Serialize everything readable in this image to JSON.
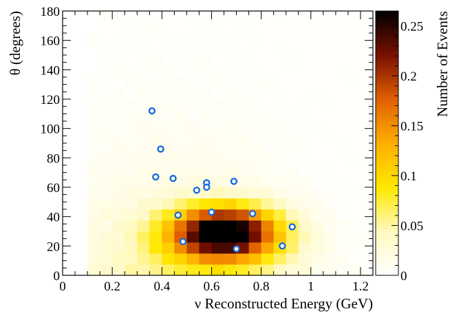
{
  "chart_data": {
    "type": "heatmap",
    "title": "",
    "xlabel": "ν Reconstructed Energy (GeV)",
    "ylabel": "θ (degrees)",
    "colorbar_label": "Number of Events",
    "xlim": [
      0,
      1.25
    ],
    "ylim": [
      0,
      180
    ],
    "zlim": [
      0,
      0.265
    ],
    "x_ticks": [
      0,
      0.2,
      0.4,
      0.6,
      0.8,
      1,
      1.2
    ],
    "x_tick_labels": [
      "0",
      "0.2",
      "0.4",
      "0.6",
      "0.8",
      "1",
      "1.2"
    ],
    "y_ticks": [
      0,
      20,
      40,
      60,
      80,
      100,
      120,
      140,
      160,
      180
    ],
    "y_tick_labels": [
      "0",
      "20",
      "40",
      "60",
      "80",
      "100",
      "120",
      "140",
      "160",
      "180"
    ],
    "colorbar_ticks": [
      0,
      0.05,
      0.1,
      0.15,
      0.2,
      0.25
    ],
    "colorbar_tick_labels": [
      "0",
      "0.05",
      "0.1",
      "0.15",
      "0.2",
      "0.25"
    ],
    "bins": {
      "x_edges": [
        0.1,
        1.25
      ],
      "x_width": 0.05,
      "y_edges": [
        0,
        180
      ],
      "y_width": 7.5
    },
    "heat_peak": {
      "x": 0.65,
      "y": 27,
      "sx": 0.16,
      "sy": 13,
      "amplitude": 0.25
    },
    "heat_secondary": {
      "x": 0.66,
      "y": 36,
      "sx": 0.12,
      "sy": 9,
      "amplitude": 0.05
    },
    "heat_background": {
      "amplitude": 0.05,
      "x_center": 0.45,
      "x_sigma": 0.35,
      "y_decay": 60
    },
    "points": [
      {
        "x": 0.36,
        "y": 112
      },
      {
        "x": 0.395,
        "y": 86
      },
      {
        "x": 0.375,
        "y": 67
      },
      {
        "x": 0.445,
        "y": 66
      },
      {
        "x": 0.58,
        "y": 63
      },
      {
        "x": 0.58,
        "y": 60
      },
      {
        "x": 0.54,
        "y": 58
      },
      {
        "x": 0.69,
        "y": 64
      },
      {
        "x": 0.465,
        "y": 41
      },
      {
        "x": 0.6,
        "y": 43
      },
      {
        "x": 0.765,
        "y": 42
      },
      {
        "x": 0.925,
        "y": 33
      },
      {
        "x": 0.485,
        "y": 23
      },
      {
        "x": 0.885,
        "y": 20
      },
      {
        "x": 0.7,
        "y": 18
      }
    ],
    "marker_color": "#1a6cd9",
    "colormap": [
      "#ffffff",
      "#fff9c0",
      "#ffe800",
      "#ffb000",
      "#e06000",
      "#7a1000",
      "#000000"
    ],
    "grid": false
  }
}
